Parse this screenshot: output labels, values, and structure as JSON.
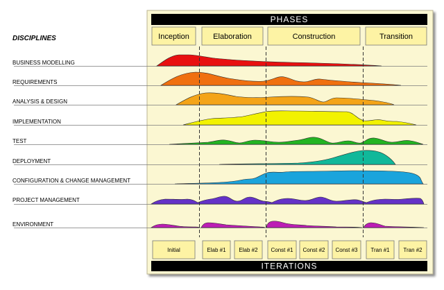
{
  "title_phases": "PHASES",
  "title_iterations": "ITERATIONS",
  "disciplines_heading": "DISCIPLINES",
  "phases": [
    {
      "label": "Inception"
    },
    {
      "label": "Elaboration"
    },
    {
      "label": "Construction"
    },
    {
      "label": "Transition"
    }
  ],
  "iterations": [
    {
      "label": "Initial"
    },
    {
      "label": "Elab #1"
    },
    {
      "label": "Elab #2"
    },
    {
      "label": "Const #1"
    },
    {
      "label": "Const #2"
    },
    {
      "label": "Const #3"
    },
    {
      "label": "Tran #1"
    },
    {
      "label": "Tran #2"
    }
  ],
  "disciplines": [
    {
      "label": "BUSINESS MODELLING",
      "color": "#e81010"
    },
    {
      "label": "REQUIREMENTS",
      "color": "#f07010"
    },
    {
      "label": "ANALYSIS & DESIGN",
      "color": "#f4a418"
    },
    {
      "label": "IMPLEMENTATION",
      "color": "#f2f200"
    },
    {
      "label": "TEST",
      "color": "#22b422"
    },
    {
      "label": "DEPLOYMENT",
      "color": "#10b89a"
    },
    {
      "label": "CONFIGURATION & CHANGE MANAGEMENT",
      "color": "#1aa4dc"
    },
    {
      "label": "PROJECT MANAGEMENT",
      "color": "#6432c8"
    },
    {
      "label": "ENVIRONMENT",
      "color": "#bc1eb4"
    }
  ],
  "colors": {
    "panel": "#fbf7d2",
    "box": "#fdf3a4",
    "bar": "#000000",
    "grid": "#555555"
  }
}
